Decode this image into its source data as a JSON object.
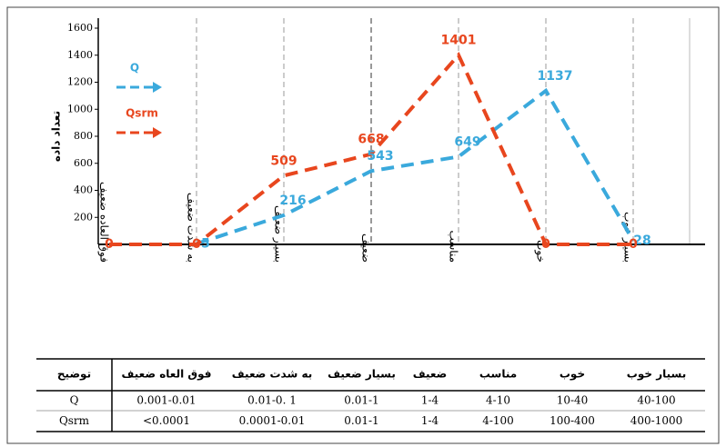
{
  "chart_data": {
    "type": "line",
    "y_label": "تعداد داده",
    "categories": [
      "فوق العاده ضعیف",
      "به شدت ضعیف",
      "بسیار ضعیف",
      "ضعیف",
      "مناسب",
      "خوب",
      "بسیار خوب"
    ],
    "series": [
      {
        "name": "Q",
        "color": "#3aa9dc",
        "values": [
          null,
          5,
          216,
          543,
          649,
          1137,
          28
        ]
      },
      {
        "name": "Qsrm",
        "color": "#e8461e",
        "values": [
          0,
          0,
          509,
          668,
          1401,
          0,
          0
        ]
      }
    ],
    "ylim": [
      0,
      1600
    ],
    "yticks": [
      200,
      400,
      600,
      800,
      1000,
      1200,
      1400,
      1600
    ],
    "grid": true
  },
  "table": {
    "header": [
      "توضیح",
      "فوق العاه ضعیف",
      "به شدت ضعیف",
      "بسیار ضعیف",
      "ضعیف",
      "مناسب",
      "خوب",
      "بسیار خوب"
    ],
    "rows": [
      [
        "Q",
        "0.001-0.01",
        "0.01-0. 1",
        "0.01-1",
        "1-4",
        "4-10",
        "10-40",
        "40-100"
      ],
      [
        "Qsrm",
        "<0.0001",
        "0.0001-0.01",
        "0.01-1",
        "1-4",
        "4-100",
        "100-400",
        "400-1000"
      ]
    ]
  }
}
